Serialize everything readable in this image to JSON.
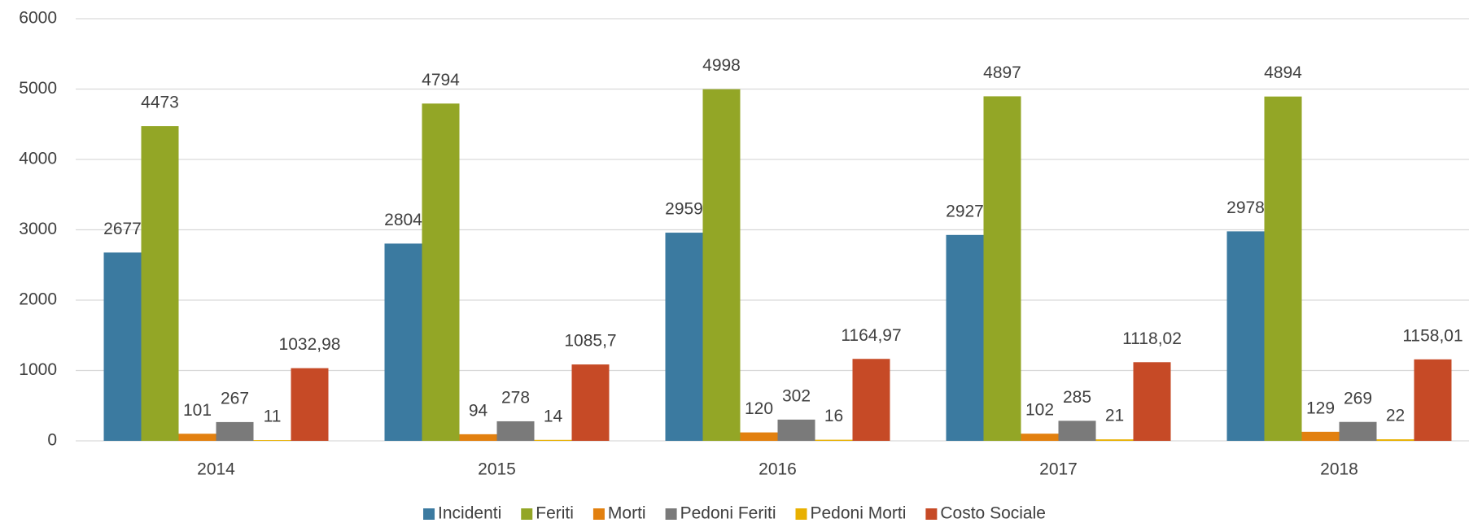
{
  "chart_data": {
    "type": "bar",
    "categories": [
      "2014",
      "2015",
      "2016",
      "2017",
      "2018"
    ],
    "series": [
      {
        "name": "Incidenti",
        "color": "#3b7aa0",
        "values": [
          2677,
          2804,
          2959,
          2927,
          2978
        ]
      },
      {
        "name": "Feriti",
        "color": "#93a626",
        "values": [
          4473,
          4794,
          4998,
          4897,
          4894
        ]
      },
      {
        "name": "Morti",
        "color": "#e2800f",
        "values": [
          101,
          94,
          120,
          102,
          129
        ]
      },
      {
        "name": "Pedoni Feriti",
        "color": "#7a7a7a",
        "values": [
          267,
          278,
          302,
          285,
          269
        ]
      },
      {
        "name": "Pedoni Morti",
        "color": "#e8b000",
        "values": [
          11,
          14,
          16,
          21,
          22
        ]
      },
      {
        "name": "Costo Sociale",
        "color": "#c64a26",
        "values": [
          1032.98,
          1085.7,
          1164.97,
          1118.02,
          1158.01
        ],
        "value_labels": [
          "1032,98",
          "1085,7",
          "1164,97",
          "1118,02",
          "1158,01"
        ]
      }
    ],
    "ylim": [
      0,
      6000
    ],
    "yticks": [
      0,
      1000,
      2000,
      3000,
      4000,
      5000,
      6000
    ],
    "grid": true,
    "legend": "bottom"
  }
}
